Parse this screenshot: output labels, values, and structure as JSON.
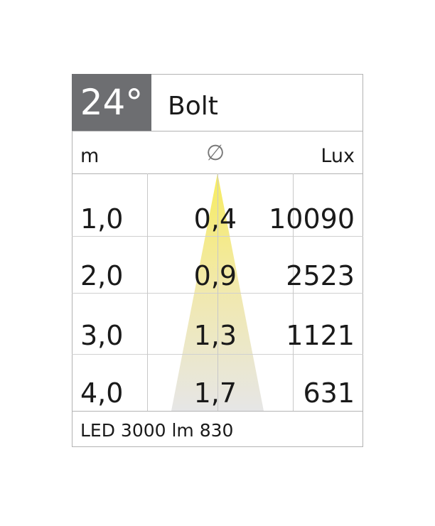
{
  "header": {
    "beam_angle": "24°",
    "product_name": "Bolt"
  },
  "columns": {
    "distance_unit": "m",
    "diameter_symbol": "∅",
    "illuminance_unit": "Lux"
  },
  "rows": [
    {
      "distance": "1,0",
      "diameter": "0,4",
      "lux": "10090"
    },
    {
      "distance": "2,0",
      "diameter": "0,9",
      "lux": "2523"
    },
    {
      "distance": "3,0",
      "diameter": "1,3",
      "lux": "1121"
    },
    {
      "distance": "4,0",
      "diameter": "1,7",
      "lux": "631"
    }
  ],
  "footer": {
    "light_source": "LED 3000 lm 830"
  },
  "colors": {
    "angle_bg": "#6d6e71",
    "beam_top": "#f7ec5e",
    "beam_bottom": "#e6e6e6",
    "grid": "#b3b3b3"
  }
}
